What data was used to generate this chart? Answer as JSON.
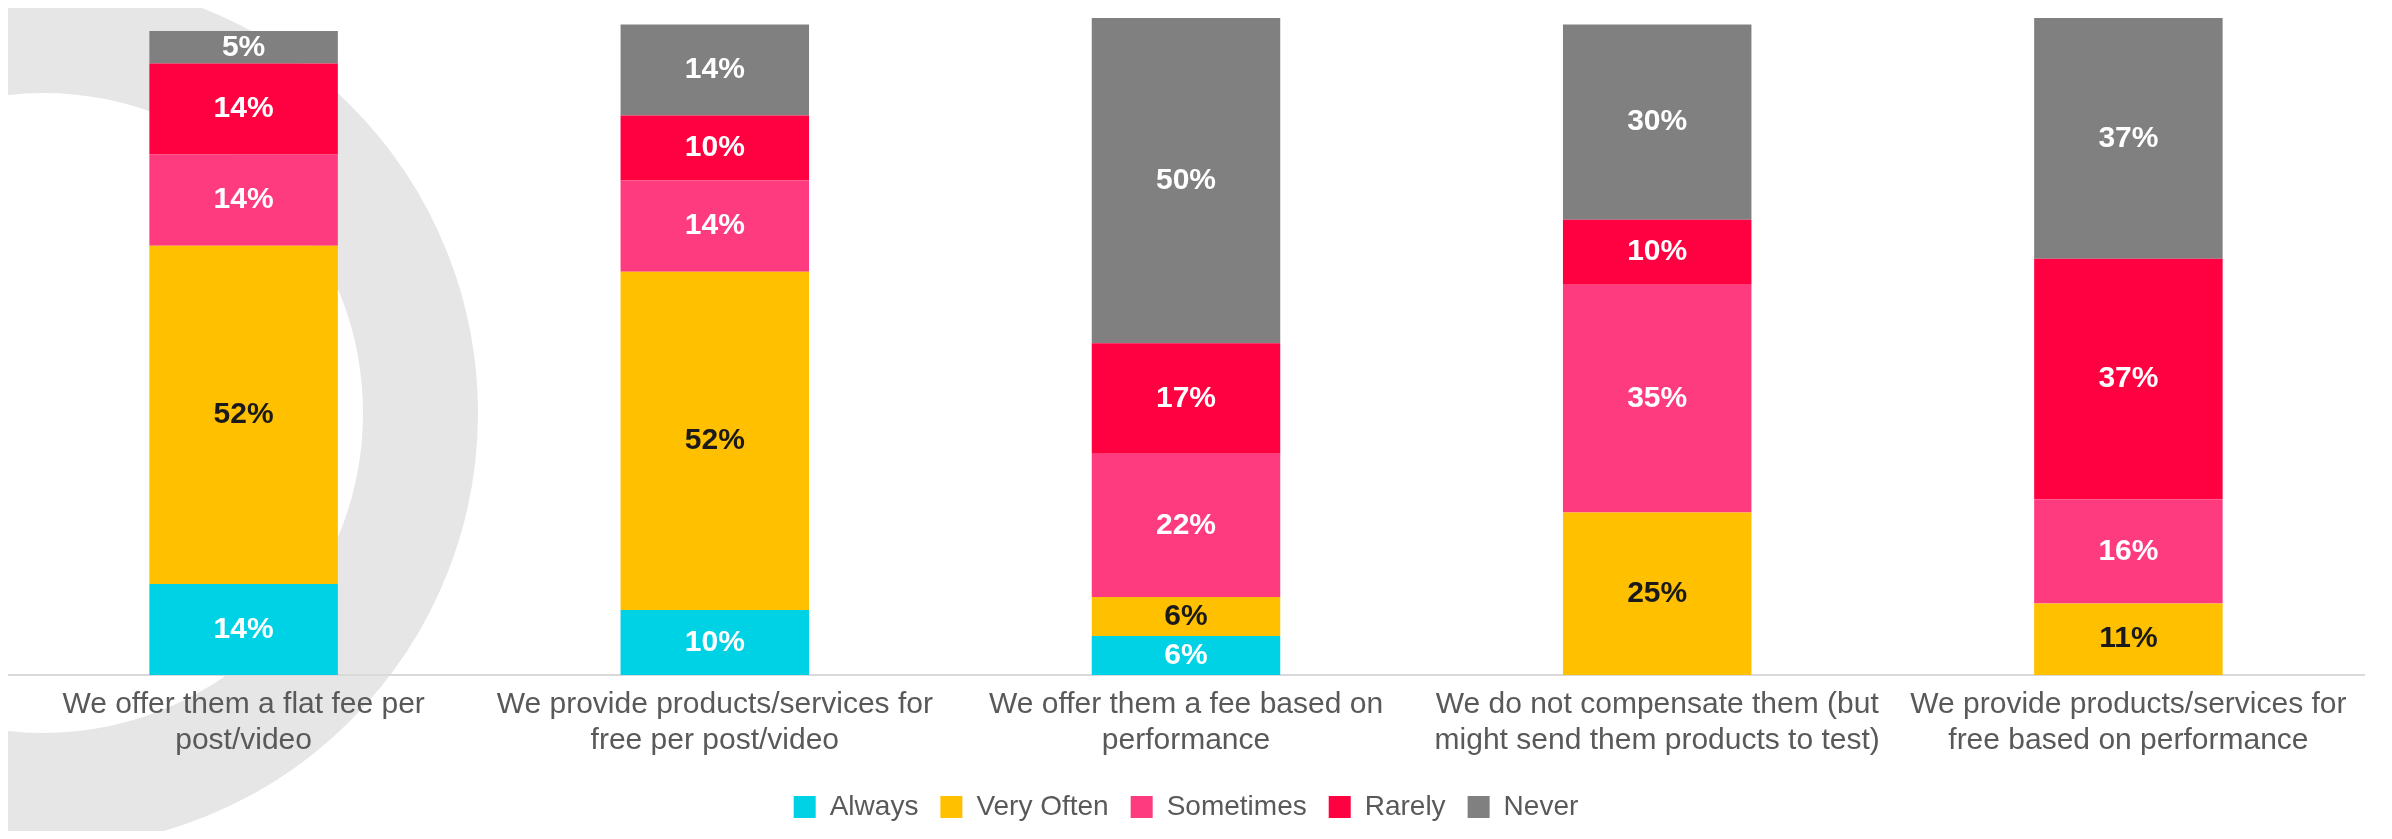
{
  "chart_data": {
    "type": "bar",
    "stacked": true,
    "categories": [
      "We offer them a flat fee per post/video",
      "We provide products/services for free per post/video",
      "We offer them a fee based on performance",
      "We do not compensate them (but might send them products to test)",
      "We provide products/services for free based on performance"
    ],
    "series": [
      {
        "name": "Always",
        "color": "#00d2e6",
        "values": [
          14,
          10,
          6,
          null,
          null
        ],
        "value_labels": [
          "14%",
          "10%",
          "6%",
          null,
          null
        ]
      },
      {
        "name": "Very Often",
        "color": "#ffc000",
        "values": [
          52,
          52,
          6,
          25,
          11
        ],
        "value_labels": [
          "52%",
          "52%",
          "6%",
          "25%",
          "11%"
        ]
      },
      {
        "name": "Sometimes",
        "color": "#ff3b7f",
        "values": [
          14,
          14,
          22,
          35,
          16
        ],
        "value_labels": [
          "14%",
          "14%",
          "22%",
          "35%",
          "16%"
        ]
      },
      {
        "name": "Rarely",
        "color": "#ff0040",
        "values": [
          14,
          10,
          17,
          10,
          37
        ],
        "value_labels": [
          "14%",
          "10%",
          "17%",
          "10%",
          "37%"
        ]
      },
      {
        "name": "Never",
        "color": "#808080",
        "values": [
          5,
          14,
          50,
          30,
          37
        ],
        "value_labels": [
          "5%",
          "14%",
          "50%",
          "30%",
          "37%"
        ]
      }
    ],
    "legend": "bottom",
    "grid": false
  }
}
